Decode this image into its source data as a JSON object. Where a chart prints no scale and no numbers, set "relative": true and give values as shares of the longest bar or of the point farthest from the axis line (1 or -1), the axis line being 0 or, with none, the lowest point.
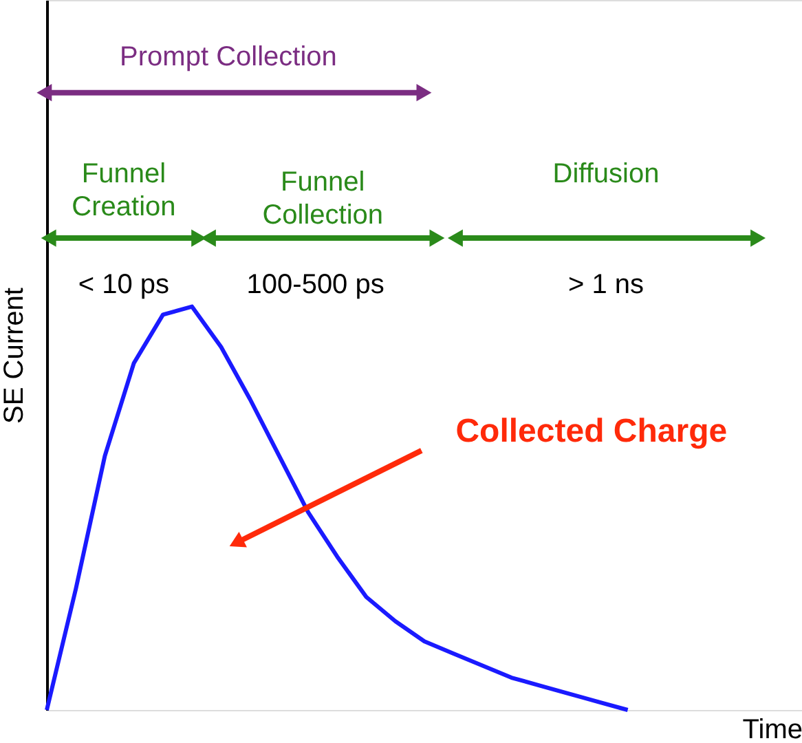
{
  "chart_data": {
    "type": "line",
    "relative": true,
    "xlabel": "Time",
    "ylabel": "SE Current",
    "tick_labels": false,
    "grid": false,
    "categories": [
      null,
      null,
      null,
      null,
      null,
      null,
      null,
      null,
      null,
      null,
      null,
      null,
      null,
      null,
      null,
      null,
      null,
      null,
      null,
      null,
      null,
      null,
      null,
      null,
      null,
      null,
      null
    ],
    "series": [
      {
        "color": "#1a1aff",
        "values": [
          0,
          0.3,
          0.63,
          0.86,
          0.98,
          1,
          0.9,
          0.77,
          0.63,
          0.49,
          0.38,
          0.28,
          0.22,
          0.17,
          0.14,
          0.11,
          0.08,
          0.06,
          0.04,
          0.02,
          0,
          null,
          null,
          null,
          null,
          null,
          null
        ]
      }
    ],
    "annotations": [
      "Prompt Collection",
      "Funnel\nCreation",
      "Funnel\nCollection",
      "Diffusion",
      "< 10 ps",
      "100-500 ps",
      "> 1 ns",
      "Collected Charge"
    ]
  }
}
